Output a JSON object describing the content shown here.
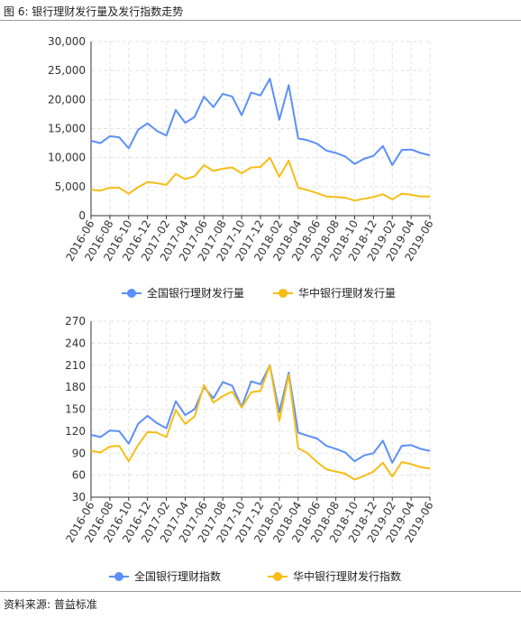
{
  "figure": {
    "title": "图 6: 银行理财发行量及发行指数走势",
    "source": "资料来源: 普益标准"
  },
  "colors": {
    "blue": "#5B8FF9",
    "gold": "#F6BD16",
    "grid": "#e3e3e3"
  },
  "chart_data": [
    {
      "type": "line",
      "x": [
        "2016-06",
        "2016-07",
        "2016-08",
        "2016-09",
        "2016-10",
        "2016-11",
        "2016-12",
        "2017-01",
        "2017-02",
        "2017-03",
        "2017-04",
        "2017-05",
        "2017-06",
        "2017-07",
        "2017-08",
        "2017-09",
        "2017-10",
        "2017-11",
        "2017-12",
        "2018-01",
        "2018-02",
        "2018-03",
        "2018-04",
        "2018-05",
        "2018-06",
        "2018-07",
        "2018-08",
        "2018-09",
        "2018-10",
        "2018-11",
        "2018-12",
        "2019-01",
        "2019-02",
        "2019-03",
        "2019-04",
        "2019-05",
        "2019-06"
      ],
      "x_tick_labels": [
        "2016-06",
        "2016-08",
        "2016-10",
        "2016-12",
        "2017-02",
        "2017-04",
        "2017-06",
        "2017-08",
        "2017-10",
        "2017-12",
        "2018-02",
        "2018-04",
        "2018-06",
        "2018-08",
        "2018-10",
        "2018-12",
        "2019-02",
        "2019-04",
        "2019-06"
      ],
      "y_ticks": [
        "0",
        "5,000",
        "10,000",
        "15,000",
        "20,000",
        "25,000",
        "30,000"
      ],
      "ylim": [
        0,
        30000
      ],
      "grid": true,
      "legend": "bottom",
      "series": [
        {
          "name": "全国银行理财发行量",
          "color": "#5B8FF9",
          "values": [
            12900,
            12500,
            13700,
            13500,
            11600,
            14800,
            15900,
            14600,
            13800,
            18200,
            16000,
            17000,
            20500,
            18700,
            21000,
            20500,
            17300,
            21200,
            20700,
            23600,
            16500,
            22500,
            13300,
            13000,
            12400,
            11200,
            10800,
            10200,
            8900,
            9800,
            10300,
            12000,
            8700,
            11300,
            11400,
            10800,
            10400
          ]
        },
        {
          "name": "华中银行理财发行量",
          "color": "#F6BD16",
          "values": [
            4500,
            4300,
            4800,
            4800,
            3800,
            4900,
            5800,
            5600,
            5300,
            7200,
            6300,
            6800,
            8700,
            7700,
            8100,
            8300,
            7300,
            8300,
            8400,
            10000,
            6700,
            9500,
            4800,
            4400,
            3900,
            3300,
            3200,
            3100,
            2600,
            2900,
            3200,
            3700,
            2800,
            3800,
            3600,
            3300,
            3300
          ]
        }
      ]
    },
    {
      "type": "line",
      "x": [
        "2016-06",
        "2016-07",
        "2016-08",
        "2016-09",
        "2016-10",
        "2016-11",
        "2016-12",
        "2017-01",
        "2017-02",
        "2017-03",
        "2017-04",
        "2017-05",
        "2017-06",
        "2017-07",
        "2017-08",
        "2017-09",
        "2017-10",
        "2017-11",
        "2017-12",
        "2018-01",
        "2018-02",
        "2018-03",
        "2018-04",
        "2018-05",
        "2018-06",
        "2018-07",
        "2018-08",
        "2018-09",
        "2018-10",
        "2018-11",
        "2018-12",
        "2019-01",
        "2019-02",
        "2019-03",
        "2019-04",
        "2019-05",
        "2019-06"
      ],
      "x_tick_labels": [
        "2016-06",
        "2016-08",
        "2016-10",
        "2016-12",
        "2017-02",
        "2017-04",
        "2017-06",
        "2017-08",
        "2017-10",
        "2017-12",
        "2018-02",
        "2018-04",
        "2018-06",
        "2018-08",
        "2018-10",
        "2018-12",
        "2019-02",
        "2019-04",
        "2019-06"
      ],
      "y_ticks": [
        "30",
        "60",
        "90",
        "120",
        "150",
        "180",
        "210",
        "240",
        "270"
      ],
      "ylim": [
        30,
        270
      ],
      "grid": true,
      "legend": "bottom",
      "series": [
        {
          "name": "全国银行理财指数",
          "color": "#5B8FF9",
          "values": [
            115,
            112,
            121,
            120,
            103,
            130,
            141,
            131,
            124,
            161,
            142,
            150,
            180,
            165,
            187,
            182,
            153,
            188,
            184,
            210,
            146,
            200,
            118,
            114,
            110,
            100,
            96,
            91,
            79,
            87,
            90,
            107,
            77,
            100,
            101,
            96,
            93
          ]
        },
        {
          "name": "华中银行理财发行指数",
          "color": "#F6BD16",
          "values": [
            93,
            91,
            99,
            100,
            79,
            101,
            119,
            118,
            112,
            149,
            130,
            140,
            183,
            159,
            168,
            174,
            152,
            173,
            175,
            210,
            134,
            197,
            97,
            90,
            78,
            68,
            65,
            62,
            54,
            59,
            65,
            77,
            58,
            78,
            75,
            71,
            69
          ]
        }
      ]
    }
  ]
}
